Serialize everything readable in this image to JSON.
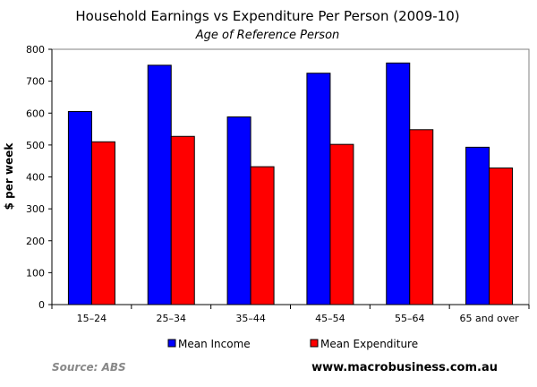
{
  "chart_data": {
    "type": "bar",
    "title": "Household Earnings vs Expenditure Per Person (2009-10)",
    "subtitle": "Age of Reference Person",
    "xlabel": "",
    "ylabel": "$ per week",
    "ylim": [
      0,
      800
    ],
    "yticks": [
      0,
      100,
      200,
      300,
      400,
      500,
      600,
      700,
      800
    ],
    "categories": [
      "15–24",
      "25–34",
      "35–44",
      "45–54",
      "55–64",
      "65 and over"
    ],
    "series": [
      {
        "name": "Mean Income",
        "color": "#0000ff",
        "values": [
          605,
          750,
          588,
          725,
          757,
          493
        ]
      },
      {
        "name": "Mean Expenditure",
        "color": "#ff0000",
        "values": [
          510,
          527,
          432,
          502,
          548,
          428
        ]
      }
    ],
    "legend_position": "bottom",
    "source": "Source: ABS",
    "website": "www.macrobusiness.com.au"
  }
}
